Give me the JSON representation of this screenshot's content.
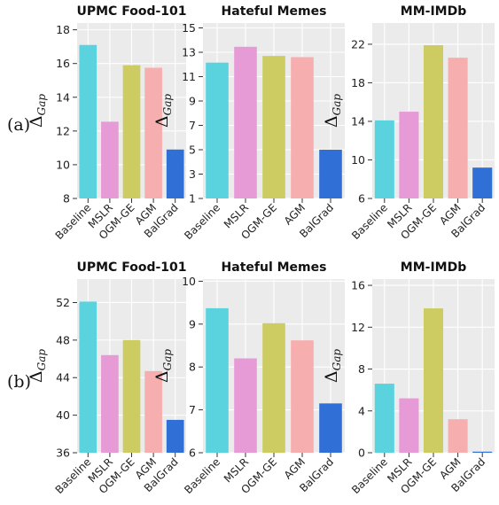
{
  "row_labels": [
    "(a)",
    "(b)"
  ],
  "y_axis_label": {
    "main": "Δ",
    "sub": "Gap"
  },
  "colors": [
    "#5bd3df",
    "#e69ad6",
    "#cccc63",
    "#f7aeaf",
    "#2f6fd6"
  ],
  "chart_data": [
    {
      "type": "bar",
      "title": "UPMC Food-101",
      "categories": [
        "Baseline",
        "MSLR",
        "OGM-GE",
        "AGM",
        "BalGrad"
      ],
      "values": [
        17.1,
        12.55,
        15.9,
        15.75,
        10.9
      ],
      "ylim": [
        8,
        18.4
      ],
      "yticks": [
        8,
        10,
        12,
        14,
        16,
        18
      ],
      "ylabel": "ΔGap",
      "grid": true
    },
    {
      "type": "bar",
      "title": "Hateful Memes",
      "categories": [
        "Baseline",
        "MSLR",
        "OGM-GE",
        "AGM",
        "BalGrad"
      ],
      "values": [
        12.15,
        13.45,
        12.7,
        12.6,
        5.0
      ],
      "ylim": [
        1,
        15.4
      ],
      "yticks": [
        1,
        3,
        5,
        7,
        9,
        11,
        13,
        15
      ],
      "ylabel": "ΔGap",
      "grid": true
    },
    {
      "type": "bar",
      "title": "MM-IMDb",
      "categories": [
        "Baseline",
        "MSLR",
        "OGM-GE",
        "AGM",
        "BalGrad"
      ],
      "values": [
        14.1,
        15.0,
        21.9,
        20.6,
        9.2
      ],
      "ylim": [
        6,
        24.2
      ],
      "yticks": [
        6,
        10,
        14,
        18,
        22
      ],
      "ylabel": "ΔGap",
      "grid": true
    },
    {
      "type": "bar",
      "title": "UPMC Food-101",
      "categories": [
        "Baseline",
        "MSLR",
        "OGM-GE",
        "AGM",
        "BalGrad"
      ],
      "values": [
        52.1,
        46.4,
        48.0,
        44.7,
        39.5
      ],
      "ylim": [
        36,
        54.5
      ],
      "yticks": [
        36,
        40,
        44,
        48,
        52
      ],
      "ylabel": "ΔGap",
      "grid": true
    },
    {
      "type": "bar",
      "title": "Hateful Memes",
      "categories": [
        "Baseline",
        "MSLR",
        "OGM-GE",
        "AGM",
        "BalGrad"
      ],
      "values": [
        9.37,
        8.2,
        9.02,
        8.62,
        7.15
      ],
      "ylim": [
        6,
        10.05
      ],
      "yticks": [
        6,
        7,
        8,
        9,
        10
      ],
      "ylabel": "ΔGap",
      "grid": true
    },
    {
      "type": "bar",
      "title": "MM-IMDb",
      "categories": [
        "Baseline",
        "MSLR",
        "OGM-GE",
        "AGM",
        "BalGrad"
      ],
      "values": [
        6.6,
        5.2,
        13.8,
        3.2,
        0.1
      ],
      "ylim": [
        0,
        16.6
      ],
      "yticks": [
        0,
        4,
        8,
        12,
        16
      ],
      "ylabel": "ΔGap",
      "grid": true
    }
  ]
}
